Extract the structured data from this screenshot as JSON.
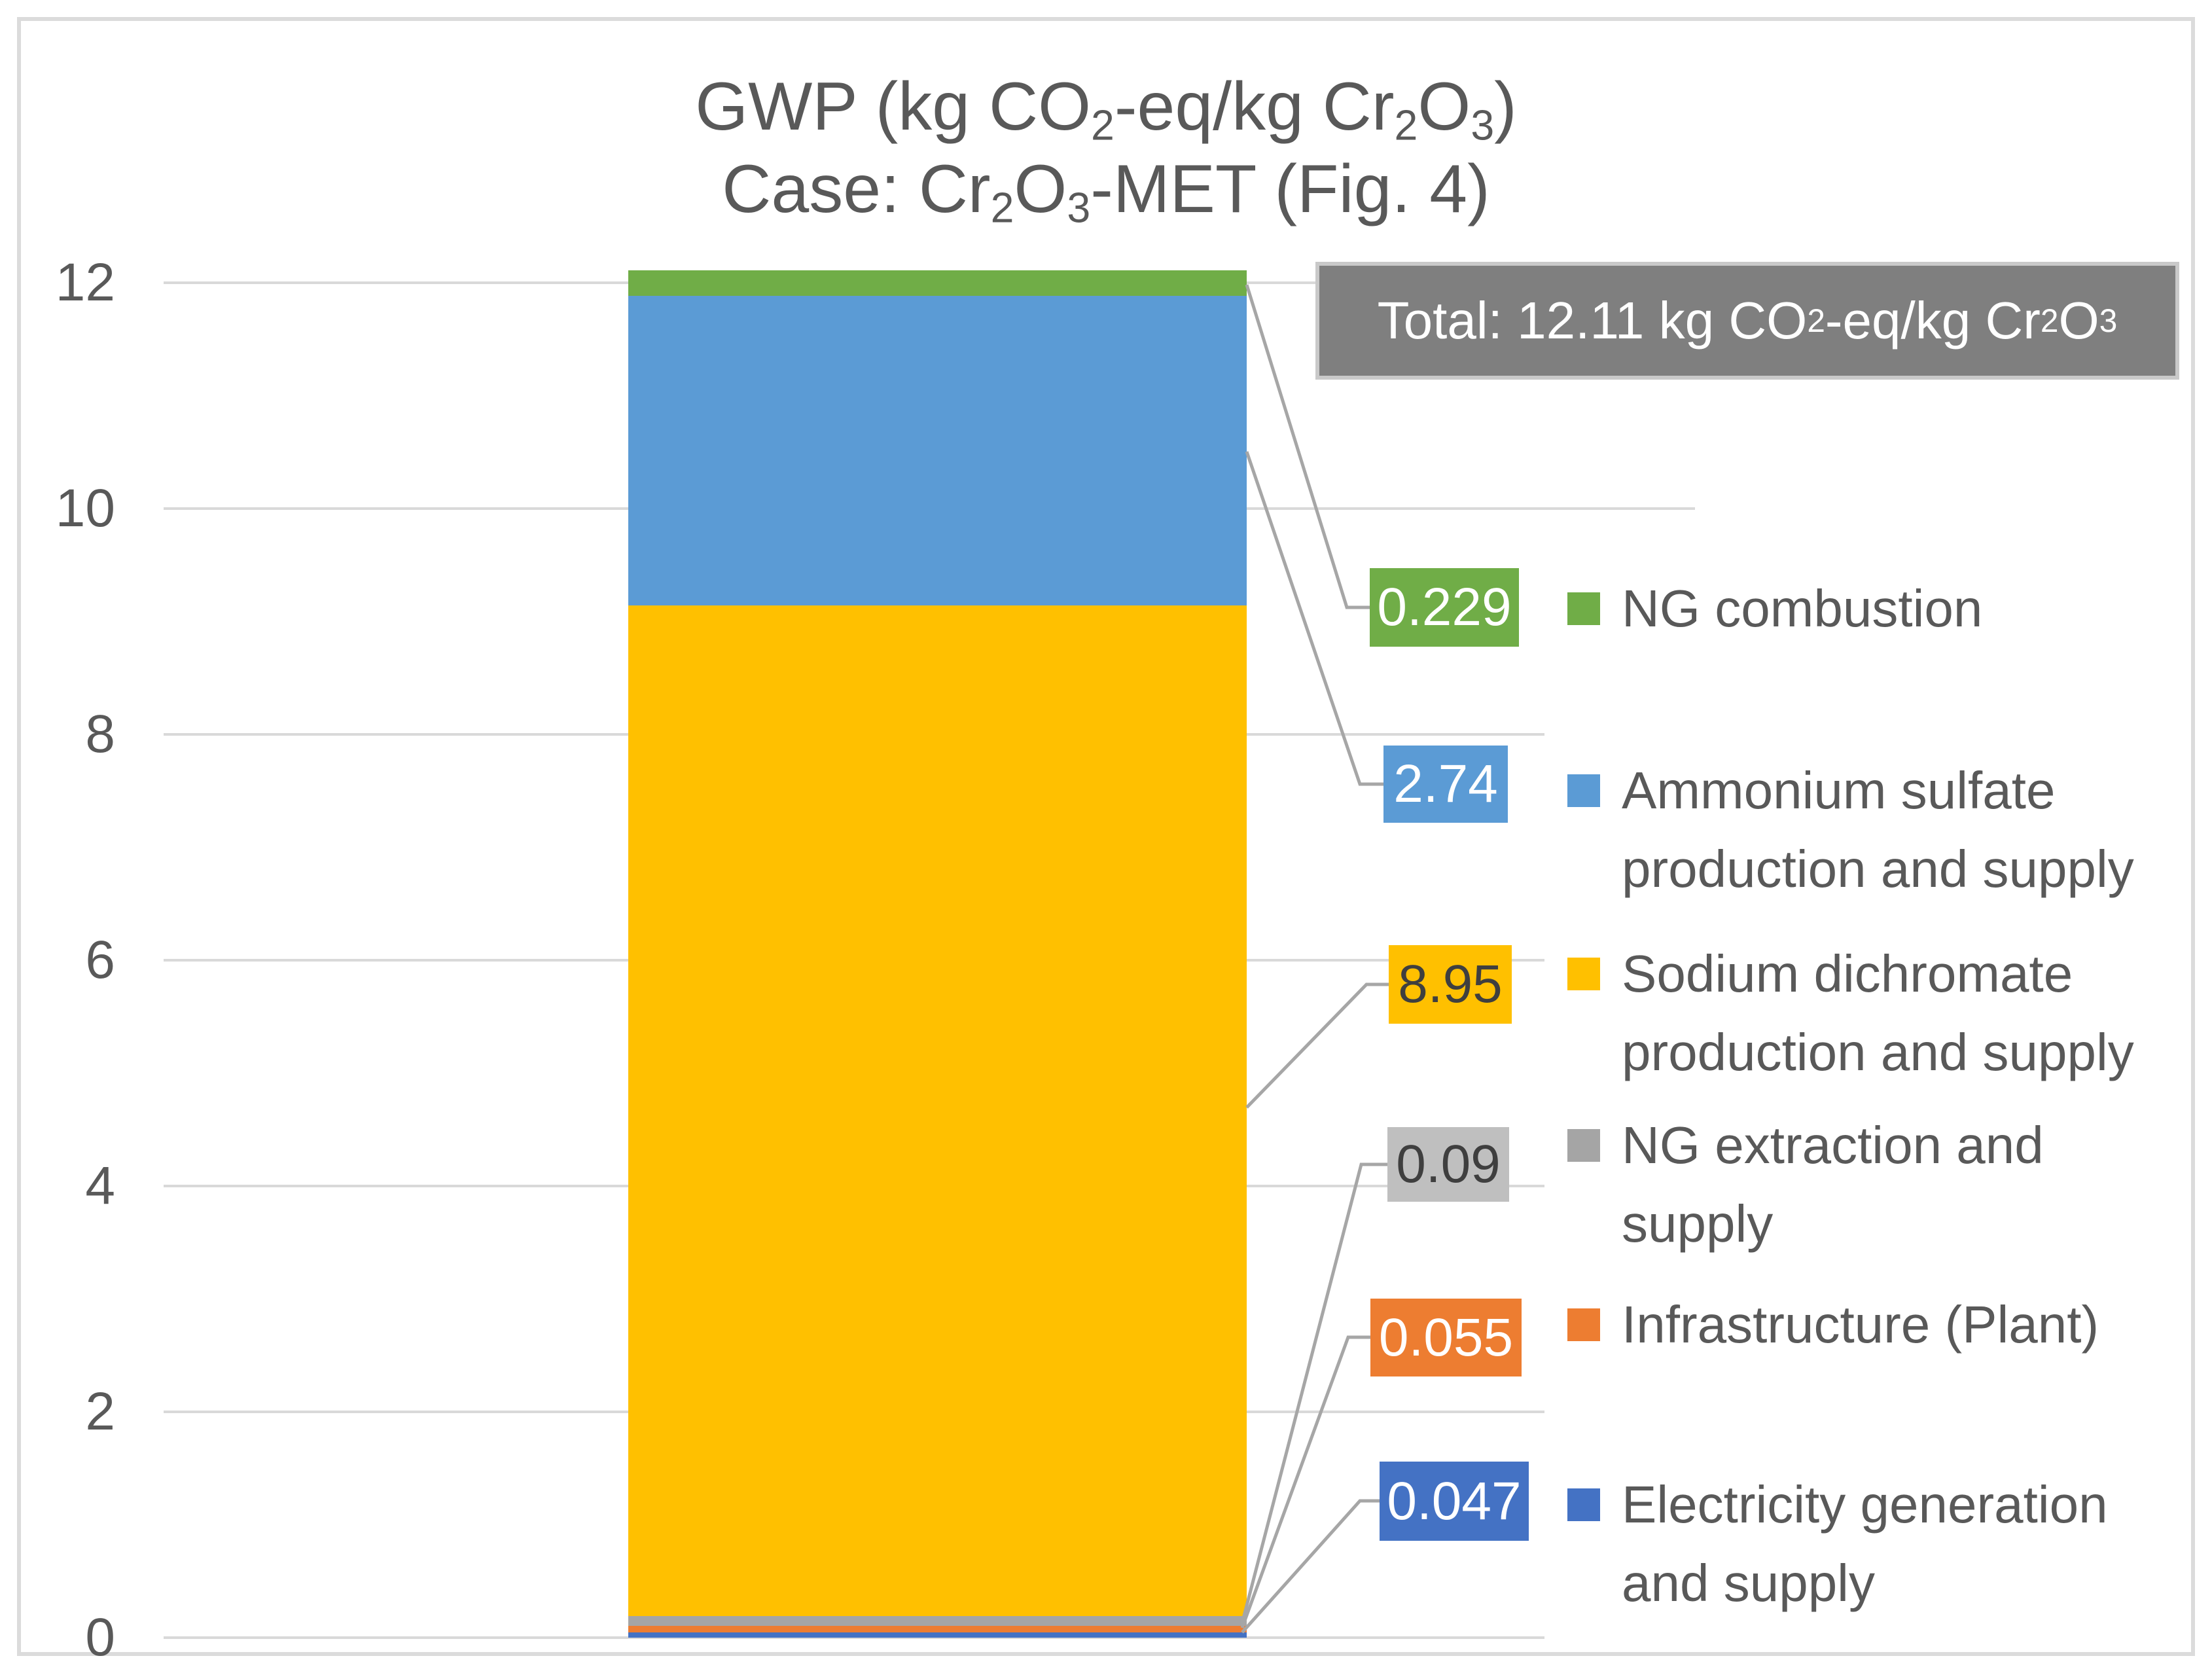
{
  "title": {
    "line1_runs": [
      {
        "t": "GWP (kg CO"
      },
      {
        "t": "2",
        "sub": true
      },
      {
        "t": "-eq/kg Cr"
      },
      {
        "t": "2",
        "sub": true
      },
      {
        "t": "O"
      },
      {
        "t": "3",
        "sub": true
      },
      {
        "t": ")"
      }
    ],
    "line2_runs": [
      {
        "t": "Case: Cr"
      },
      {
        "t": "2",
        "sub": true
      },
      {
        "t": "O"
      },
      {
        "t": "3",
        "sub": true
      },
      {
        "t": "-MET (Fig. 4)"
      }
    ]
  },
  "total_box": {
    "runs": [
      {
        "t": "Total: 12.11 kg CO"
      },
      {
        "t": "2",
        "sub": true
      },
      {
        "t": "-eq/kg Cr"
      },
      {
        "t": "2",
        "sub": true
      },
      {
        "t": "O"
      },
      {
        "t": "3",
        "sub": true
      }
    ],
    "bg": "#7F7F7F",
    "border": "#C9C9C9",
    "text_color": "#FFFFFF"
  },
  "y_axis": {
    "ticks": [
      "0",
      "2",
      "4",
      "6",
      "8",
      "10",
      "12"
    ]
  },
  "colors": {
    "gridline": "#D9D9D9",
    "leader_line": "#A6A6A6",
    "text": "#595959",
    "frame_border": "#DBDBDB",
    "background": "#FFFFFF"
  },
  "callouts": [
    {
      "value": "0.229",
      "bg": "#70AD47",
      "fg": "#FFFFFF"
    },
    {
      "value": "2.74",
      "bg": "#5B9BD5",
      "fg": "#FFFFFF"
    },
    {
      "value": "8.95",
      "bg": "#FFC000",
      "fg": "#3F3F3F"
    },
    {
      "value": "0.09",
      "bg": "#BFBFBF",
      "fg": "#3F3F3F"
    },
    {
      "value": "0.055",
      "bg": "#ED7D31",
      "fg": "#FFFFFF"
    },
    {
      "value": "0.047",
      "bg": "#4472C4",
      "fg": "#FFFFFF"
    }
  ],
  "legend": {
    "items": [
      {
        "lines": [
          "NG combustion"
        ],
        "color": "#70AD47"
      },
      {
        "lines": [
          "Ammonium sulfate",
          "production and supply"
        ],
        "color": "#5B9BD5"
      },
      {
        "lines": [
          "Sodium dichromate",
          "production and supply"
        ],
        "color": "#FFC000"
      },
      {
        "lines": [
          "NG extraction and",
          "supply"
        ],
        "color": "#A5A5A5"
      },
      {
        "lines": [
          "Infrastructure (Plant)"
        ],
        "color": "#ED7D31"
      },
      {
        "lines": [
          "Electricity generation",
          "and supply"
        ],
        "color": "#4472C4"
      }
    ]
  },
  "chart_data": {
    "type": "bar",
    "stacked": true,
    "title": "GWP (kg CO2-eq/kg Cr2O3)",
    "subtitle": "Case: Cr2O3-MET (Fig. 4)",
    "categories": [
      "Cr2O3-MET"
    ],
    "series": [
      {
        "name": "Electricity generation and supply",
        "values": [
          0.047
        ],
        "color": "#4472C4"
      },
      {
        "name": "Infrastructure (Plant)",
        "values": [
          0.055
        ],
        "color": "#ED7D31"
      },
      {
        "name": "NG extraction and supply",
        "values": [
          0.09
        ],
        "color": "#A5A5A5"
      },
      {
        "name": "Sodium dichromate production and supply",
        "values": [
          8.95
        ],
        "color": "#FFC000"
      },
      {
        "name": "Ammonium sulfate production and supply",
        "values": [
          2.74
        ],
        "color": "#5B9BD5"
      },
      {
        "name": "NG combustion",
        "values": [
          0.229
        ],
        "color": "#70AD47"
      }
    ],
    "total": 12.11,
    "total_label": "Total: 12.11 kg CO2-eq/kg Cr2O3",
    "data_labels": [
      "0.047",
      "0.055",
      "0.09",
      "8.95",
      "2.74",
      "0.229"
    ],
    "ylabel": "",
    "xlabel": "",
    "ylim": [
      0,
      12
    ],
    "ytick_step": 2,
    "grid": true,
    "legend_position": "right"
  }
}
